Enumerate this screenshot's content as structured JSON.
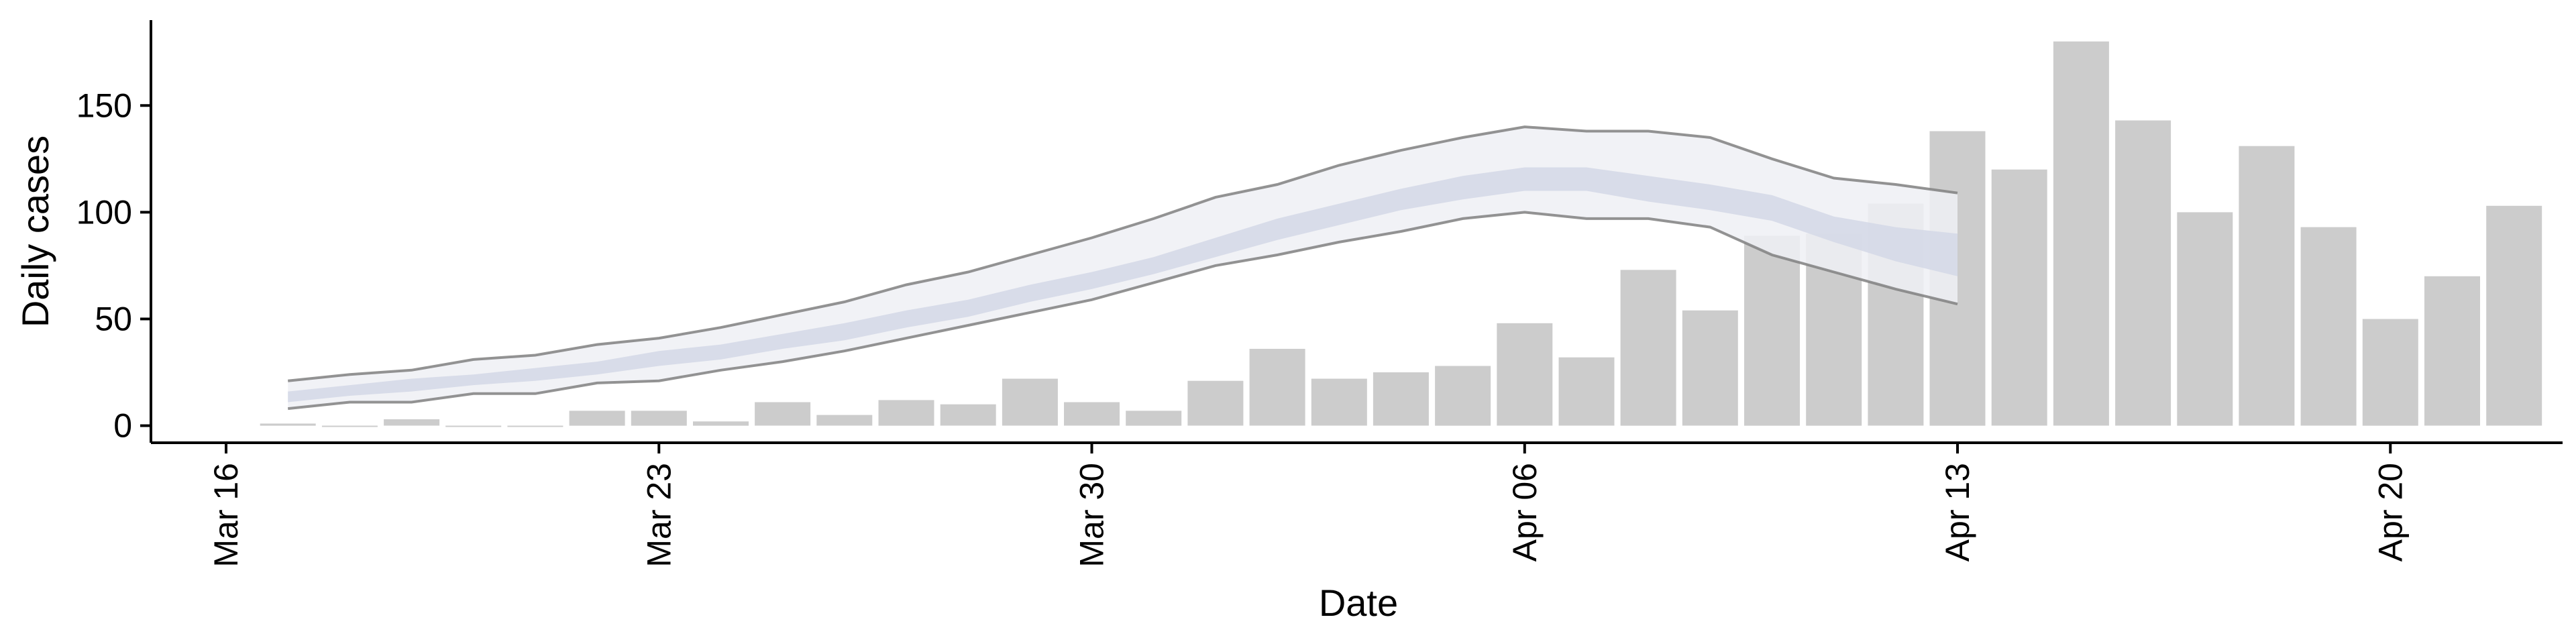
{
  "chart_data": {
    "type": "bar",
    "xlabel": "Date",
    "ylabel": "Daily cases",
    "ylim": [
      -8,
      190
    ],
    "yticks": [
      0,
      50,
      100,
      150
    ],
    "xlim": [
      "2020-03-16",
      "2020-04-24"
    ],
    "xticks": [
      {
        "date": "2020-03-16",
        "label": "Mar 16"
      },
      {
        "date": "2020-03-23",
        "label": "Mar 23"
      },
      {
        "date": "2020-03-30",
        "label": "Mar 30"
      },
      {
        "date": "2020-04-06",
        "label": "Apr 06"
      },
      {
        "date": "2020-04-13",
        "label": "Apr 13"
      },
      {
        "date": "2020-04-20",
        "label": "Apr 20"
      }
    ],
    "grid": false,
    "colors": {
      "bars": "#cccccc",
      "band_outer": "#eef0f5",
      "band_inner": "#d3d8e6",
      "interval_lines": "#808080",
      "axis": "#000000"
    },
    "series": [
      {
        "type": "bar",
        "x": [
          "2020-03-17",
          "2020-03-18",
          "2020-03-19",
          "2020-03-20",
          "2020-03-21",
          "2020-03-22",
          "2020-03-23",
          "2020-03-24",
          "2020-03-25",
          "2020-03-26",
          "2020-03-27",
          "2020-03-28",
          "2020-03-29",
          "2020-03-30",
          "2020-03-31",
          "2020-04-01",
          "2020-04-02",
          "2020-04-03",
          "2020-04-04",
          "2020-04-05",
          "2020-04-06",
          "2020-04-07",
          "2020-04-08",
          "2020-04-09",
          "2020-04-10",
          "2020-04-11",
          "2020-04-12",
          "2020-04-13",
          "2020-04-14",
          "2020-04-15",
          "2020-04-16",
          "2020-04-17",
          "2020-04-18",
          "2020-04-19",
          "2020-04-20",
          "2020-04-21",
          "2020-04-22"
        ],
        "values": [
          1,
          0,
          3,
          0,
          0,
          7,
          7,
          2,
          11,
          5,
          12,
          10,
          22,
          11,
          7,
          21,
          36,
          22,
          25,
          28,
          48,
          32,
          73,
          54,
          89,
          90,
          104,
          138,
          120,
          180,
          143,
          100,
          131,
          93,
          50,
          70,
          103
        ]
      },
      {
        "type": "interval",
        "x": [
          "2020-03-17",
          "2020-03-18",
          "2020-03-19",
          "2020-03-20",
          "2020-03-21",
          "2020-03-22",
          "2020-03-23",
          "2020-03-24",
          "2020-03-25",
          "2020-03-26",
          "2020-03-27",
          "2020-03-28",
          "2020-03-29",
          "2020-03-30",
          "2020-03-31",
          "2020-04-01",
          "2020-04-02",
          "2020-04-03",
          "2020-04-04",
          "2020-04-05",
          "2020-04-06",
          "2020-04-07",
          "2020-04-08",
          "2020-04-09",
          "2020-04-10",
          "2020-04-11",
          "2020-04-12",
          "2020-04-13"
        ],
        "outer_lower": [
          8,
          11,
          11,
          15,
          15,
          20,
          21,
          26,
          30,
          35,
          41,
          47,
          53,
          59,
          67,
          75,
          80,
          86,
          91,
          97,
          100,
          97,
          97,
          93,
          80,
          72,
          64,
          57
        ],
        "outer_upper": [
          21,
          24,
          26,
          31,
          33,
          38,
          41,
          46,
          52,
          58,
          66,
          72,
          80,
          88,
          97,
          107,
          113,
          122,
          129,
          135,
          140,
          138,
          138,
          135,
          125,
          116,
          113,
          109
        ],
        "inner_lower": [
          11,
          14,
          16,
          19,
          21,
          24,
          28,
          31,
          36,
          40,
          46,
          51,
          58,
          64,
          71,
          79,
          87,
          94,
          101,
          106,
          110,
          110,
          105,
          101,
          96,
          86,
          77,
          70
        ],
        "inner_upper": [
          16,
          19,
          22,
          24,
          27,
          30,
          35,
          38,
          43,
          48,
          54,
          59,
          66,
          72,
          79,
          88,
          97,
          104,
          111,
          117,
          121,
          121,
          117,
          113,
          108,
          98,
          93,
          90
        ]
      }
    ]
  }
}
